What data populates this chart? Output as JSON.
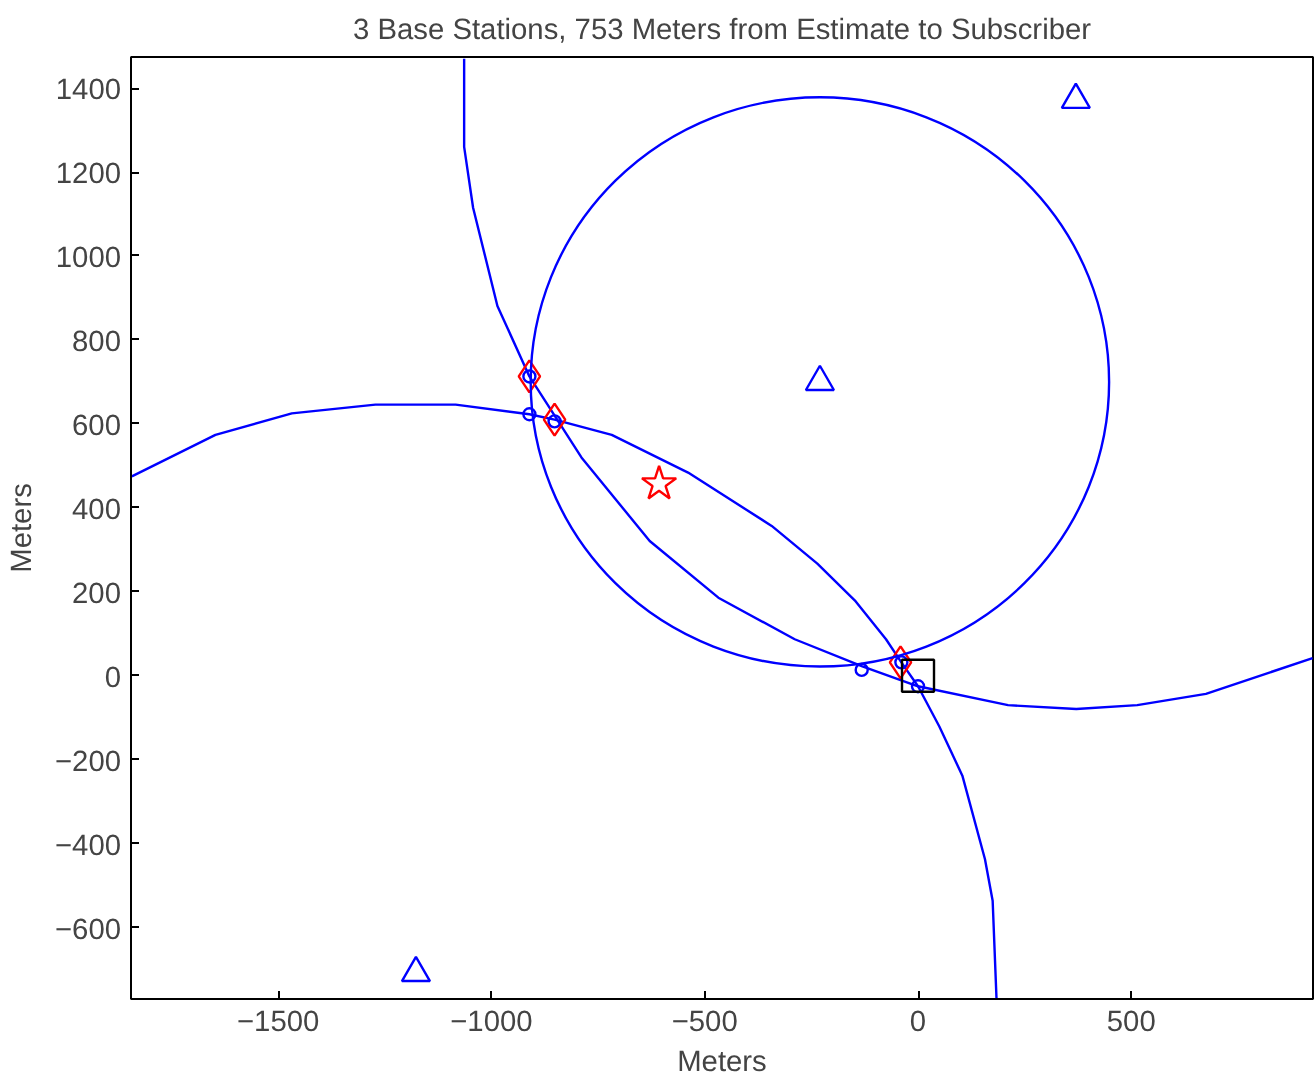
{
  "chart_data": {
    "type": "scatter",
    "title": "3 Base Stations, 753 Meters from Estimate to Subscriber",
    "xlabel": "Meters",
    "ylabel": "Meters",
    "xlim": [
      -1845,
      926
    ],
    "ylim": [
      -770,
      1474
    ],
    "xticks": [
      -1500,
      -1000,
      -500,
      0,
      500
    ],
    "yticks": [
      -600,
      -400,
      -200,
      0,
      200,
      400,
      600,
      800,
      1000,
      1200,
      1400
    ],
    "grid": false,
    "series": [
      {
        "type": "line",
        "color": "#0000ff",
        "line_style": "solid",
        "x": [
          -1064,
          -1064,
          -1043,
          -986,
          -911,
          -789,
          -629,
          -468,
          -289,
          -132,
          0,
          211,
          371,
          514,
          675,
          925
        ],
        "values": [
          1470,
          1260,
          1115,
          881,
          713,
          520,
          321,
          186,
          87,
          23,
          -25,
          -70,
          -79,
          -70,
          -43,
          42
        ]
      },
      {
        "type": "line",
        "color": "#0000ff",
        "line_style": "solid",
        "x": [
          -1843,
          -1647,
          -1468,
          -1272,
          -1084,
          -911,
          -852,
          -718,
          -539,
          -343,
          -236,
          -146,
          -75,
          -39,
          0,
          50,
          104,
          157,
          175,
          184
        ],
        "values": [
          475,
          574,
          625,
          646,
          646,
          623,
          610,
          574,
          484,
          357,
          267,
          177,
          87,
          32,
          -25,
          -121,
          -238,
          -437,
          -536,
          -768
        ]
      },
      {
        "color": "#0000ff",
        "marker": "triangle",
        "x": [
          370,
          -230,
          -1177
        ],
        "values": [
          1372,
          700,
          -708
        ]
      },
      {
        "color": "#0000ff",
        "marker": "circle",
        "x": [
          -911,
          -911,
          -852,
          -132,
          -39,
          0
        ],
        "values": [
          713,
          623,
          606,
          14,
          32,
          -25
        ]
      },
      {
        "color": "#ff0000",
        "marker": "diamond",
        "x": [
          -911,
          -852,
          -41
        ],
        "values": [
          713,
          610,
          32
        ]
      },
      {
        "color": "#ff0000",
        "marker": "star",
        "x": [
          -607
        ],
        "values": [
          457
        ]
      },
      {
        "color": "#000000",
        "marker": "square",
        "x": [
          0
        ],
        "values": [
          0
        ]
      }
    ]
  }
}
